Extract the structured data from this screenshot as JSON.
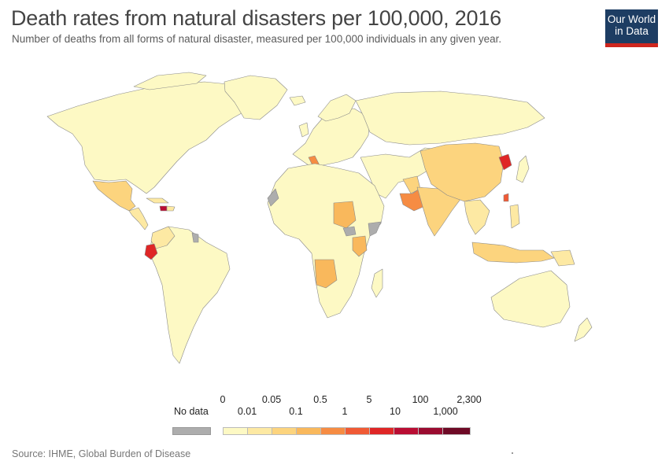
{
  "header": {
    "title": "Death rates from natural disasters per 100,000, 2016",
    "subtitle": "Number of deaths from all forms of natural disaster, measured per 100,000 individuals in any given year.",
    "logo_line1": "Our World",
    "logo_line2": "in Data"
  },
  "colors": {
    "bins": [
      "#fdf9c4",
      "#fde9a3",
      "#fcd47e",
      "#f9b85c",
      "#f68c43",
      "#f05a35",
      "#df2626",
      "#b90d33",
      "#9a0b30",
      "#6e0a26"
    ],
    "no_data": "#adadad",
    "border": "#8a8a8a",
    "logo_bg": "#1d3d63",
    "logo_bar": "#ce261e"
  },
  "legend": {
    "no_data_label": "No data",
    "upper_labels": [
      "0",
      "0.05",
      "0.5",
      "5",
      "100",
      "2,300"
    ],
    "lower_labels": [
      "0.01",
      "0.1",
      "1",
      "10",
      "1,000"
    ],
    "thresholds": [
      "0",
      "0.01",
      "0.05",
      "0.1",
      "0.5",
      "1",
      "5",
      "10",
      "100",
      "1,000",
      "2,300"
    ]
  },
  "map_data": {
    "year": "2016",
    "metric": "Death rates from natural disasters per 100,000",
    "regions": [
      {
        "name": "North America",
        "bin": 0
      },
      {
        "name": "Greenland",
        "bin": 0
      },
      {
        "name": "Mexico",
        "bin": 2
      },
      {
        "name": "Central America",
        "bin": 1
      },
      {
        "name": "Haiti",
        "bin": 7
      },
      {
        "name": "Cuba",
        "bin": 1
      },
      {
        "name": "South America",
        "bin": 0
      },
      {
        "name": "Ecuador",
        "bin": 6
      },
      {
        "name": "Colombia",
        "bin": 1
      },
      {
        "name": "Guyana",
        "bin": "no_data"
      },
      {
        "name": "Europe",
        "bin": 0
      },
      {
        "name": "Italy",
        "bin": 4
      },
      {
        "name": "Russia",
        "bin": 0
      },
      {
        "name": "Africa",
        "bin": 0
      },
      {
        "name": "Sudan",
        "bin": 3
      },
      {
        "name": "Angola",
        "bin": 3
      },
      {
        "name": "Kenya",
        "bin": 3
      },
      {
        "name": "Somalia",
        "bin": "no_data"
      },
      {
        "name": "South Sudan",
        "bin": "no_data"
      },
      {
        "name": "Western Sahara",
        "bin": "no_data"
      },
      {
        "name": "Middle East",
        "bin": 0
      },
      {
        "name": "Pakistan",
        "bin": 4
      },
      {
        "name": "Afghanistan",
        "bin": 2
      },
      {
        "name": "India",
        "bin": 2
      },
      {
        "name": "China",
        "bin": 2
      },
      {
        "name": "North Korea",
        "bin": 6
      },
      {
        "name": "Taiwan",
        "bin": 5
      },
      {
        "name": "Southeast Asia",
        "bin": 1
      },
      {
        "name": "Indonesia",
        "bin": 2
      },
      {
        "name": "Australia",
        "bin": 0
      },
      {
        "name": "New Zealand",
        "bin": 0
      },
      {
        "name": "Japan",
        "bin": 0
      },
      {
        "name": "Madagascar",
        "bin": 0
      }
    ]
  },
  "footer": {
    "source": "Source: IHME, Global Burden of Disease"
  }
}
